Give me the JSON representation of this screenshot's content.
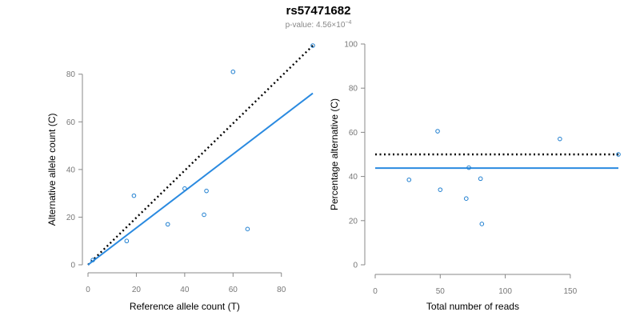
{
  "header": {
    "title": "rs57471682",
    "pvalue_label": "p-value: 4.56×10",
    "pvalue_exponent": "−4"
  },
  "colors": {
    "points": "#1f7fd0",
    "fit_line": "#2a8ae0",
    "reference_line": "#000000",
    "axis": "#888888"
  },
  "chart_data": [
    {
      "type": "scatter",
      "xlabel": "Reference allele count (T)",
      "ylabel": "Alternative allele count (C)",
      "xlim": [
        0,
        92
      ],
      "ylim": [
        0,
        92
      ],
      "xticks": [
        0,
        20,
        40,
        60,
        80
      ],
      "yticks": [
        0,
        20,
        40,
        60,
        80
      ],
      "points": [
        {
          "x": 2,
          "y": 2
        },
        {
          "x": 16,
          "y": 10
        },
        {
          "x": 19,
          "y": 29
        },
        {
          "x": 33,
          "y": 17
        },
        {
          "x": 40,
          "y": 32
        },
        {
          "x": 48,
          "y": 21
        },
        {
          "x": 49,
          "y": 31
        },
        {
          "x": 60,
          "y": 81
        },
        {
          "x": 66,
          "y": 15
        },
        {
          "x": 93,
          "y": 92
        }
      ],
      "fit_line": {
        "x": [
          0,
          93
        ],
        "y": [
          0,
          72
        ]
      },
      "reference_line": {
        "x": [
          0,
          93
        ],
        "y": [
          0,
          92
        ]
      },
      "grid": false
    },
    {
      "type": "scatter",
      "xlabel": "Total number of reads",
      "ylabel": "Percentage alternative (C)",
      "xlim": [
        0,
        187
      ],
      "ylim": [
        0,
        100
      ],
      "xticks": [
        0,
        50,
        100,
        150
      ],
      "yticks": [
        0,
        20,
        40,
        60,
        80,
        100
      ],
      "points": [
        {
          "x": 26,
          "y": 38.5
        },
        {
          "x": 48,
          "y": 60.5
        },
        {
          "x": 50,
          "y": 34
        },
        {
          "x": 70,
          "y": 30
        },
        {
          "x": 72,
          "y": 44
        },
        {
          "x": 81,
          "y": 39
        },
        {
          "x": 82,
          "y": 18.5
        },
        {
          "x": 142,
          "y": 57
        },
        {
          "x": 187,
          "y": 50
        }
      ],
      "fit_line": {
        "x": [
          0,
          187
        ],
        "y": [
          43.8,
          43.8
        ]
      },
      "reference_line": {
        "x": [
          0,
          187
        ],
        "y": [
          50,
          50
        ]
      },
      "grid": false
    }
  ]
}
